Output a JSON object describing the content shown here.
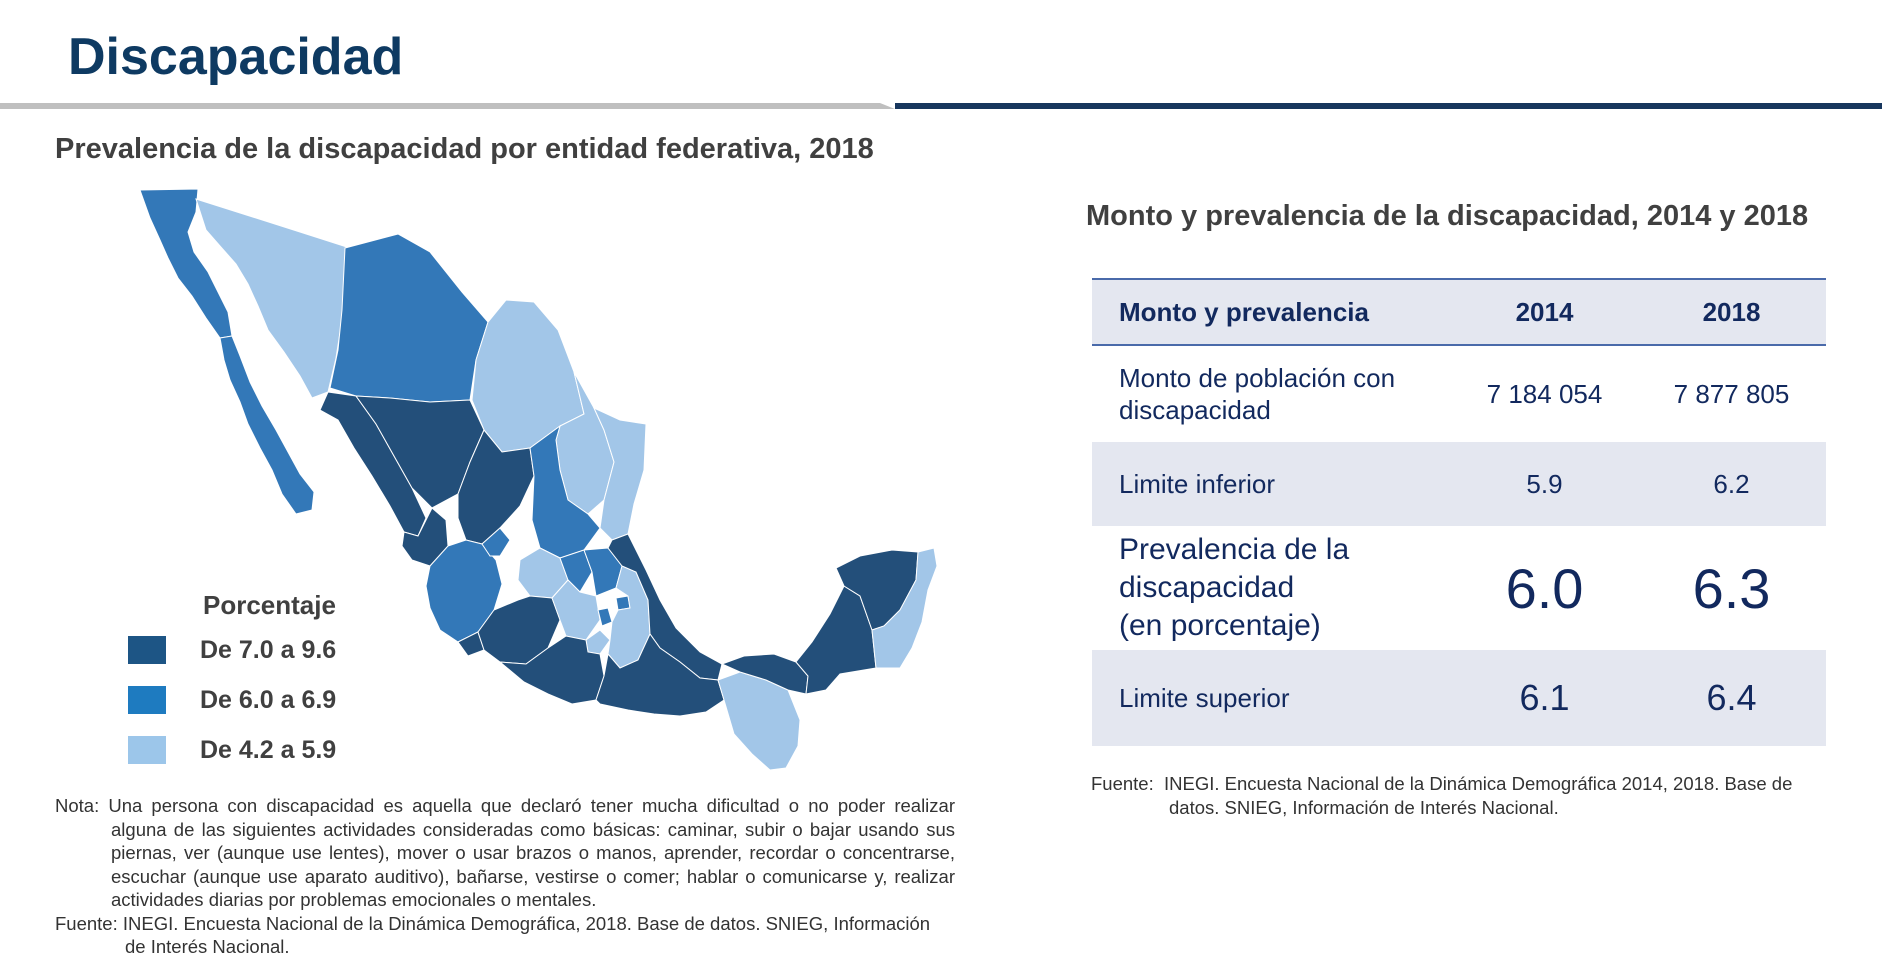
{
  "page": {
    "title": "Discapacidad"
  },
  "map_section": {
    "title": "Prevalencia de la discapacidad por entidad federativa, 2018",
    "legend": {
      "title": "Porcentaje",
      "items": [
        {
          "label": "De 7.0 a 9.6",
          "color": "#1d5585"
        },
        {
          "label": "De 6.0 a 6.9",
          "color": "#1e7bc0"
        },
        {
          "label": "De 4.2 a 5.9",
          "color": "#9cc6ea"
        }
      ]
    },
    "note_label": "Nota:",
    "note_text": "Una persona con discapacidad es aquella que declaró tener mucha dificultad o no poder realizar alguna de las siguientes actividades consideradas como básicas: caminar, subir o bajar usando sus piernas, ver (aunque use lentes), mover o usar brazos o manos, aprender, recordar o concentrarse, escuchar (aunque use aparato auditivo), bañarse, vestirse o comer; hablar o comunicarse y, realizar actividades diarias por problemas emocionales o mentales.",
    "source_label": "Fuente:",
    "source_text": "INEGI. Encuesta Nacional de la Dinámica Demográfica, 2018. Base de datos. SNIEG, Información de Interés Nacional."
  },
  "table_section": {
    "title": "Monto y prevalencia de la discapacidad, 2014 y 2018",
    "headers": [
      "Monto y prevalencia",
      "2014",
      "2018"
    ],
    "rows": [
      {
        "label": "Monto de población con discapacidad",
        "v2014": "7 184 054",
        "v2018": "7 877 805"
      },
      {
        "label": "Limite inferior",
        "v2014": "5.9",
        "v2018": "6.2"
      },
      {
        "label_lines": [
          "Prevalencia de la",
          "discapacidad",
          "(en porcentaje)"
        ],
        "v2014": "6.0",
        "v2018": "6.3"
      },
      {
        "label": "Limite superior",
        "v2014": "6.1",
        "v2018": "6.4"
      }
    ],
    "source_label": "Fuente:",
    "source_text": "INEGI. Encuesta Nacional de la Dinámica Demográfica 2014, 2018. Base de datos. SNIEG, Información de Interés Nacional."
  },
  "colors": {
    "title": "#0e3a62",
    "rule_gray": "#bfbfbf",
    "rule_navy": "#17365d",
    "shade_dark": "#234f7a",
    "shade_mid": "#3378b8",
    "shade_light": "#a2c6e8",
    "table_text": "#12295e",
    "table_shade": "#e4e7f0"
  }
}
